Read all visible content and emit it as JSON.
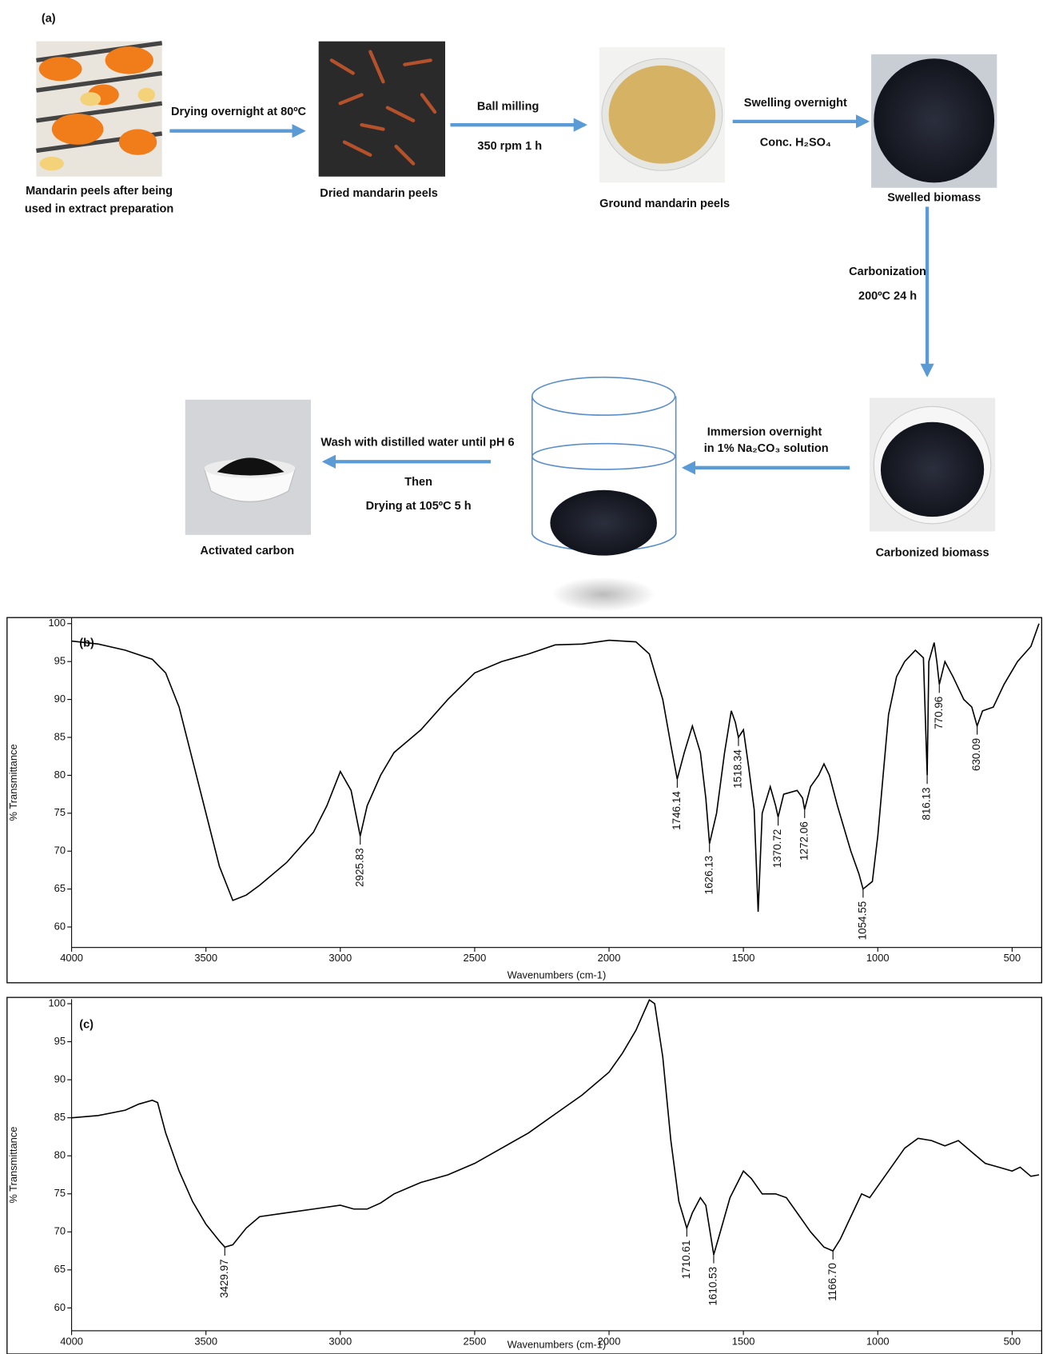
{
  "diagram": {
    "panel_label": "(a)",
    "nodes": [
      {
        "label": [
          "Mandarin peels after being",
          "used in extract preparation"
        ]
      },
      {
        "label": [
          "Dried mandarin peels"
        ]
      },
      {
        "label": [
          "Ground mandarin peels"
        ]
      },
      {
        "label": [
          "Swelled biomass"
        ]
      },
      {
        "label": [
          "Carbonized biomass"
        ]
      },
      {
        "label": [
          "Activated carbon"
        ]
      }
    ],
    "arrows": [
      {
        "labels": [
          "Drying overnight at 80ºC"
        ]
      },
      {
        "labels": [
          "Ball milling",
          "350 rpm 1 h"
        ]
      },
      {
        "labels": [
          "Swelling overnight",
          "Conc. H₂SO₄"
        ]
      },
      {
        "labels": [
          "Carbonization",
          "200ºC 24 h"
        ]
      },
      {
        "labels": [
          "Immersion overnight",
          "in 1% Na₂CO₃ solution"
        ]
      },
      {
        "labels": [
          "Wash with distilled water until pH 6",
          "Then",
          "Drying at 105ºC 5 h"
        ]
      }
    ]
  },
  "chart_data": [
    {
      "type": "line",
      "panel_label": "(b)",
      "y_label": "% Transmittance",
      "x_label": "Wavenumbers (cm-1)",
      "color": "#000000",
      "xlim": [
        4000,
        390
      ],
      "ylim": [
        57.3,
        100.8
      ],
      "xticks": [
        4000,
        3500,
        3000,
        2500,
        2000,
        1500,
        1000,
        500
      ],
      "yticks": [
        60,
        65,
        70,
        75,
        80,
        85,
        90,
        95,
        100
      ],
      "x": [
        4000,
        3900,
        3800,
        3700,
        3650,
        3600,
        3550,
        3500,
        3450,
        3400,
        3350,
        3300,
        3200,
        3100,
        3050,
        3000,
        2960,
        2925.83,
        2900,
        2850,
        2800,
        2700,
        2600,
        2500,
        2400,
        2300,
        2200,
        2100,
        2000,
        1900,
        1850,
        1800,
        1770,
        1746.14,
        1720,
        1690,
        1660,
        1640,
        1626.13,
        1600,
        1570,
        1545,
        1530,
        1518.34,
        1500,
        1480,
        1460,
        1445,
        1430,
        1400,
        1380,
        1370.72,
        1350,
        1300,
        1280,
        1272.06,
        1250,
        1220,
        1200,
        1180,
        1150,
        1100,
        1070,
        1054.55,
        1020,
        1000,
        980,
        960,
        930,
        900,
        860,
        830,
        816.13,
        810,
        790,
        780,
        770.96,
        750,
        720,
        680,
        650,
        630.09,
        610,
        570,
        530,
        480,
        430,
        400
      ],
      "values": [
        97.7,
        97.3,
        96.5,
        95.3,
        93.5,
        89,
        82,
        75,
        68,
        63.5,
        64.2,
        65.5,
        68.5,
        72.5,
        76,
        80.5,
        78,
        72,
        76,
        80,
        83,
        86,
        90,
        93.5,
        95,
        96,
        97.2,
        97.3,
        97.8,
        97.6,
        96,
        90,
        84,
        79.5,
        83,
        86.5,
        83,
        77,
        71,
        75,
        83,
        88.5,
        87,
        85,
        86,
        81,
        75.5,
        62,
        75,
        78.5,
        76,
        74.5,
        77.5,
        78,
        77,
        75.5,
        78.5,
        80,
        81.5,
        80,
        76,
        70,
        67,
        65,
        66,
        72,
        80,
        88,
        93,
        95,
        96.5,
        95.5,
        80,
        95,
        97.5,
        95,
        92,
        95,
        93,
        90,
        89,
        86.5,
        88.5,
        89,
        92,
        95,
        97,
        100
      ],
      "peaks": [
        {
          "x": 2925.83,
          "y": 72,
          "label": "2925.83"
        },
        {
          "x": 1746.14,
          "y": 79.5,
          "label": "1746.14"
        },
        {
          "x": 1626.13,
          "y": 71,
          "label": "1626.13"
        },
        {
          "x": 1518.34,
          "y": 85,
          "label": "1518.34"
        },
        {
          "x": 1370.72,
          "y": 74.5,
          "label": "1370.72"
        },
        {
          "x": 1272.06,
          "y": 75.5,
          "label": "1272.06"
        },
        {
          "x": 1054.55,
          "y": 65,
          "label": "1054.55"
        },
        {
          "x": 816.13,
          "y": 80,
          "label": "816.13"
        },
        {
          "x": 770.96,
          "y": 92,
          "label": "770.96"
        },
        {
          "x": 630.09,
          "y": 86.5,
          "label": "630.09"
        }
      ]
    },
    {
      "type": "line",
      "panel_label": "(c)",
      "y_label": "% Transmittance",
      "x_label": "Wavenumbers (cm-1)",
      "color": "#000000",
      "xlim": [
        4000,
        390
      ],
      "ylim": [
        57,
        100.6
      ],
      "xticks": [
        4000,
        3500,
        3000,
        2500,
        2000,
        1500,
        1000,
        500
      ],
      "yticks": [
        60,
        65,
        70,
        75,
        80,
        85,
        90,
        95,
        100
      ],
      "x": [
        4000,
        3900,
        3800,
        3750,
        3700,
        3680,
        3650,
        3600,
        3550,
        3500,
        3450,
        3429.97,
        3400,
        3350,
        3300,
        3200,
        3100,
        3000,
        2950,
        2900,
        2850,
        2800,
        2700,
        2600,
        2500,
        2400,
        2300,
        2200,
        2100,
        2000,
        1950,
        1900,
        1850,
        1830,
        1800,
        1770,
        1740,
        1710.61,
        1690,
        1660,
        1640,
        1610.53,
        1590,
        1550,
        1500,
        1470,
        1430,
        1380,
        1340,
        1300,
        1250,
        1200,
        1166.7,
        1140,
        1100,
        1060,
        1030,
        1000,
        950,
        900,
        850,
        800,
        750,
        700,
        650,
        600,
        550,
        500,
        470,
        430,
        400
      ],
      "values": [
        85,
        85.3,
        86,
        86.8,
        87.3,
        87,
        83,
        78,
        74,
        71,
        68.8,
        68,
        68.3,
        70.5,
        72,
        72.5,
        73,
        73.5,
        73,
        73,
        73.8,
        75,
        76.5,
        77.5,
        79,
        81,
        83,
        85.5,
        88,
        91,
        93.5,
        96.5,
        100.5,
        100,
        93,
        82,
        74,
        70.5,
        72.5,
        74.5,
        73.5,
        67,
        69.5,
        74.5,
        78,
        77,
        75,
        75,
        74.5,
        72.5,
        70,
        68,
        67.5,
        69,
        72,
        75,
        74.5,
        76,
        78.5,
        81,
        82.3,
        82,
        81.3,
        82,
        80.5,
        79,
        78.5,
        78,
        78.5,
        77.3,
        77.5
      ],
      "peaks": [
        {
          "x": 3429.97,
          "y": 68,
          "label": "3429.97"
        },
        {
          "x": 1710.61,
          "y": 70.5,
          "label": "1710.61"
        },
        {
          "x": 1610.53,
          "y": 67,
          "label": "1610.53"
        },
        {
          "x": 1166.7,
          "y": 67.5,
          "label": "1166.70"
        }
      ]
    }
  ]
}
